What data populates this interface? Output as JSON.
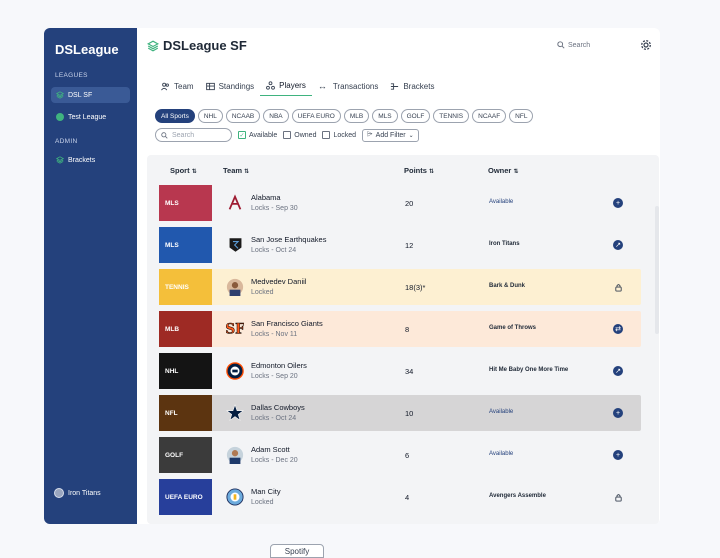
{
  "sidebar": {
    "brand": "DSLeague",
    "section_leagues": "LEAGUES",
    "leagues": [
      {
        "label": "DSL SF",
        "active": true
      },
      {
        "label": "Test League",
        "active": false
      }
    ],
    "section_admin": "ADMIN",
    "admin": [
      {
        "label": "Brackets"
      }
    ],
    "user": "Iron Titans"
  },
  "header": {
    "title": "DSLeague SF",
    "search_placeholder": "Search"
  },
  "tabs": [
    {
      "label": "Team",
      "icon": "users-icon"
    },
    {
      "label": "Standings",
      "icon": "table-icon"
    },
    {
      "label": "Players",
      "icon": "players-icon",
      "active": true
    },
    {
      "label": "Transactions",
      "icon": "arrows-icon"
    },
    {
      "label": "Brackets",
      "icon": "bracket-icon"
    }
  ],
  "sport_chips": [
    "All Sports",
    "NHL",
    "NCAAB",
    "NBA",
    "UEFA EURO",
    "MLB",
    "MLS",
    "GOLF",
    "TENNIS",
    "NCAAF",
    "NFL"
  ],
  "filters": {
    "search_placeholder": "Search",
    "available": "Available",
    "owned": "Owned",
    "locked": "Locked",
    "add_filter": "Add Filter"
  },
  "table": {
    "headers": {
      "sport": "Sport",
      "team": "Team",
      "points": "Points",
      "owner": "Owner"
    },
    "rows": [
      {
        "sport": "MLS",
        "sport_color": "#b8374f",
        "team": "Alabama",
        "sub": "Locks - Sep 30",
        "points": "20",
        "owner": "Available",
        "available": true,
        "action": "add",
        "bg": "#f3f4f6"
      },
      {
        "sport": "MLS",
        "sport_color": "#2158ae",
        "team": "San Jose Earthquakes",
        "sub": "Locks - Oct 24",
        "points": "12",
        "owner": "Iron Titans",
        "available": false,
        "action": "trade",
        "bg": "#f3f4f6"
      },
      {
        "sport": "TENNIS",
        "sport_color": "#f4bf3a",
        "team": "Medvedev Daniil",
        "sub": "Locked",
        "points": "18(3)*",
        "owner": "Bark & Dunk",
        "available": false,
        "action": "lock",
        "bg": "#fdf0d2"
      },
      {
        "sport": "MLB",
        "sport_color": "#9e2a24",
        "team": "San Francisco Giants",
        "sub": "Locks - Nov 11",
        "points": "8",
        "owner": "Game of Throws",
        "available": false,
        "action": "swap",
        "bg": "#fde9d9"
      },
      {
        "sport": "NHL",
        "sport_color": "#141414",
        "team": "Edmonton Oilers",
        "sub": "Locks - Sep 20",
        "points": "34",
        "owner": "Hit Me Baby One More Time",
        "available": false,
        "action": "trade",
        "bg": "#f3f4f6"
      },
      {
        "sport": "NFL",
        "sport_color": "#5c3410",
        "team": "Dallas Cowboys",
        "sub": "Locks - Oct 24",
        "points": "10",
        "owner": "Available",
        "available": true,
        "action": "add",
        "bg": "#d6d5d6"
      },
      {
        "sport": "GOLF",
        "sport_color": "#3b3b3b",
        "team": "Adam Scott",
        "sub": "Locks - Dec 20",
        "points": "6",
        "owner": "Available",
        "available": true,
        "action": "add",
        "bg": "#f3f4f6"
      },
      {
        "sport": "UEFA EURO",
        "sport_color": "#273f9b",
        "team": "Man City",
        "sub": "Locked",
        "points": "4",
        "owner": "Avengers Assemble",
        "available": false,
        "action": "lock",
        "bg": "#f3f4f6"
      }
    ]
  },
  "footer_button": "Spotify"
}
